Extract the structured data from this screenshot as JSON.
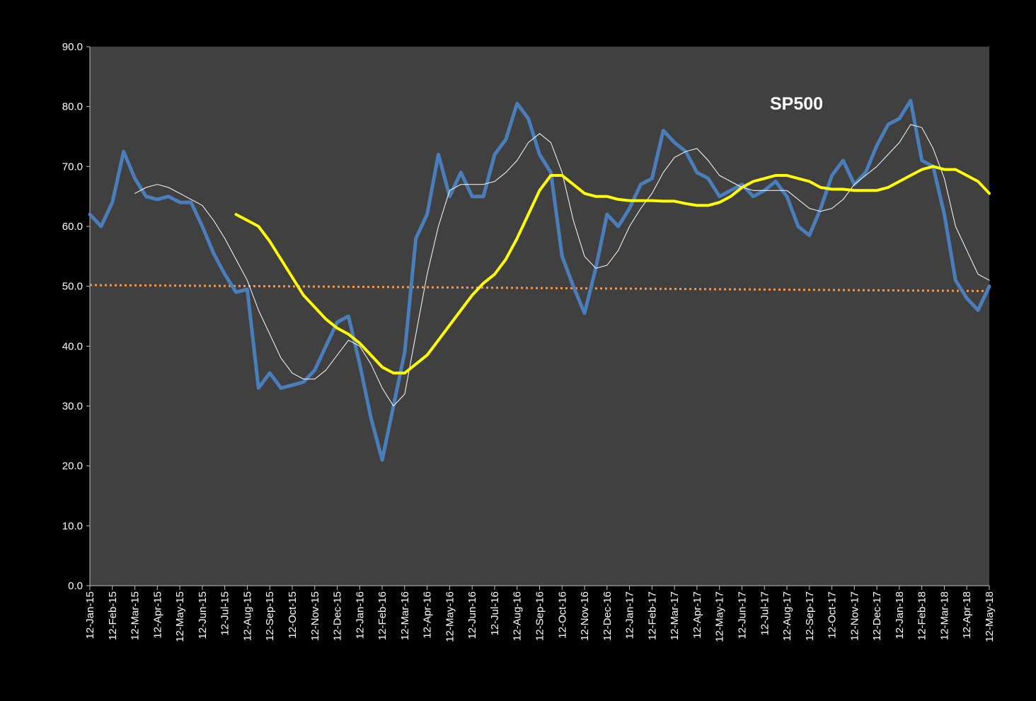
{
  "chart_data": {
    "type": "line",
    "categories": [
      "12-Jan-15",
      null,
      "12-Feb-15",
      null,
      "12-Mar-15",
      null,
      "12-Apr-15",
      null,
      "12-May-15",
      null,
      "12-Jun-15",
      null,
      "12-Jul-15",
      null,
      "12-Aug-15",
      null,
      "12-Sep-15",
      null,
      "12-Oct-15",
      null,
      "12-Nov-15",
      null,
      "12-Dec-15",
      null,
      "12-Jan-16",
      null,
      "12-Feb-16",
      null,
      "12-Mar-16",
      null,
      "12-Apr-16",
      null,
      "12-May-16",
      null,
      "12-Jun-16",
      null,
      "12-Jul-16",
      null,
      "12-Aug-16",
      null,
      "12-Sep-16",
      null,
      "12-Oct-16",
      null,
      "12-Nov-16",
      null,
      "12-Dec-16",
      null,
      "12-Jan-17",
      null,
      "12-Feb-17",
      null,
      "12-Mar-17",
      null,
      "12-Apr-17",
      null,
      "12-May-17",
      null,
      "12-Jun-17",
      null,
      "12-Jul-17",
      null,
      "12-Aug-17",
      null,
      "12-Sep-17",
      null,
      "12-Oct-17",
      null,
      "12-Nov-17",
      null,
      "12-Dec-17",
      null,
      "12-Jan-18",
      null,
      "12-Feb-18",
      null,
      "12-Mar-18",
      null,
      "12-Apr-18",
      null,
      "12-May-18"
    ],
    "series": [
      {
        "color": "#4a7ebb",
        "width": 5,
        "values": [
          62,
          60,
          64,
          72.5,
          68,
          65,
          64.5,
          65,
          64,
          64,
          60,
          55.5,
          52,
          49,
          49.5,
          33,
          35.5,
          33,
          33.5,
          34,
          36,
          40,
          44,
          45,
          37,
          28,
          21,
          30,
          39,
          58,
          62,
          72,
          65,
          69,
          65,
          65,
          72,
          74.5,
          80.5,
          78,
          72,
          69,
          55,
          50,
          45.5,
          53,
          62,
          60,
          63,
          67,
          68,
          76,
          74,
          72.5,
          69,
          68,
          65,
          66,
          67,
          65,
          66,
          67.5,
          65,
          60,
          58.5,
          63,
          68.5,
          71,
          67,
          69,
          73.5,
          77,
          78,
          81,
          71,
          70,
          62,
          51,
          48,
          46,
          50
        ]
      },
      {
        "color": "#ffffff",
        "width": 1,
        "values": [
          null,
          null,
          null,
          null,
          65.5,
          66.5,
          67,
          66.5,
          65.5,
          64.5,
          63.5,
          61,
          58,
          54.5,
          51,
          46,
          42,
          38,
          35.5,
          34.5,
          34.5,
          36,
          38.5,
          41,
          40,
          37,
          33,
          30,
          32,
          42,
          52,
          60,
          66,
          67,
          67,
          67,
          67.5,
          69,
          71,
          74,
          75.5,
          74,
          69,
          61,
          55,
          53,
          53.5,
          56,
          60,
          63,
          65.5,
          69,
          71.5,
          72.5,
          73,
          71,
          68.5,
          67.5,
          66.5,
          66,
          66,
          66,
          66,
          64.5,
          63,
          62.5,
          63,
          64.5,
          67,
          68.5,
          70,
          72,
          74,
          77,
          76.5,
          73,
          68,
          60,
          56,
          52,
          51
        ]
      },
      {
        "color": "#ffff00",
        "width": 4,
        "values": [
          null,
          null,
          null,
          null,
          null,
          null,
          null,
          null,
          null,
          null,
          null,
          null,
          null,
          62,
          61,
          60,
          57.5,
          54.5,
          51.5,
          48.5,
          46.5,
          44.5,
          43,
          42,
          40.5,
          38.5,
          36.5,
          35.5,
          35.5,
          37,
          38.5,
          41,
          43.5,
          46,
          48.5,
          50.5,
          52,
          54.5,
          58,
          62,
          66,
          68.5,
          68.5,
          67,
          65.5,
          65,
          65,
          64.5,
          64.3,
          64.3,
          64.3,
          64.2,
          64.2,
          63.8,
          63.5,
          63.5,
          64,
          65,
          66.5,
          67.5,
          68,
          68.5,
          68.5,
          68,
          67.5,
          66.5,
          66.2,
          66.2,
          66,
          66,
          66,
          66.5,
          67.5,
          68.5,
          69.5,
          70,
          69.5,
          69.5,
          68.5,
          67.5,
          65.5
        ]
      }
    ],
    "trendline": {
      "color": "#f79646",
      "style": "dotted",
      "values": [
        50.2,
        49.2
      ]
    },
    "annotations": [
      {
        "text": "SP500",
        "color": "#ffff00"
      }
    ],
    "ylim": [
      0,
      90
    ],
    "yticks": [
      {
        "value": 0,
        "label": "0.0"
      },
      {
        "value": 10,
        "label": "10.0"
      },
      {
        "value": 20,
        "label": "20.0"
      },
      {
        "value": 30,
        "label": "30.0"
      },
      {
        "value": 40,
        "label": "40.0"
      },
      {
        "value": 50,
        "label": "50.0"
      },
      {
        "value": 60,
        "label": "60.0"
      },
      {
        "value": 70,
        "label": "70.0"
      },
      {
        "value": 80,
        "label": "80.0"
      },
      {
        "value": 90,
        "label": "90.0"
      }
    ],
    "grid": false,
    "plot_background": "#404040"
  }
}
